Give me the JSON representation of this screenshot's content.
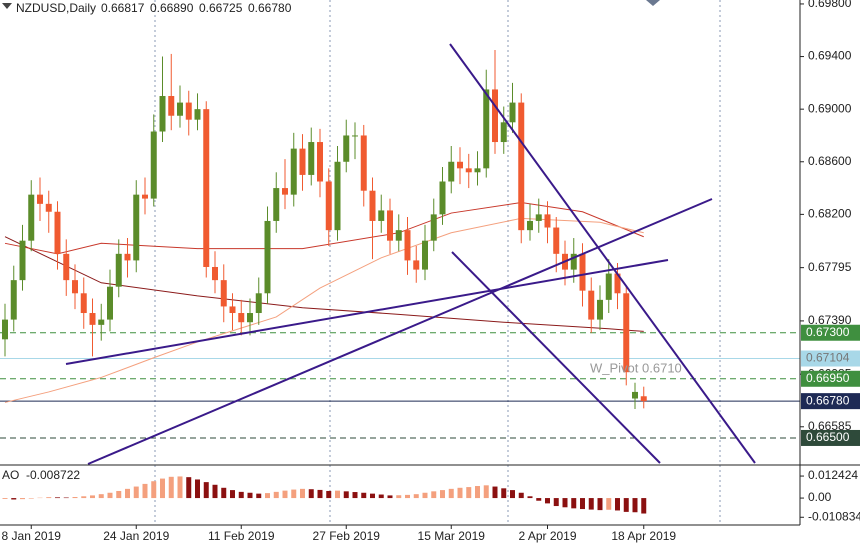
{
  "chart_data": {
    "type": "candlestick",
    "title": "NZDUSD,Daily",
    "last_bar_labels": [
      "0.66817",
      "0.66890",
      "0.66725",
      "0.66780"
    ],
    "categories": [
      null,
      null,
      null,
      "8 Jan 2019",
      null,
      null,
      null,
      null,
      null,
      null,
      null,
      null,
      null,
      null,
      null,
      "24 Jan 2019",
      null,
      null,
      null,
      null,
      null,
      null,
      null,
      null,
      null,
      null,
      null,
      "11 Feb 2019",
      null,
      null,
      null,
      null,
      null,
      null,
      null,
      null,
      null,
      null,
      null,
      "27 Feb 2019",
      null,
      null,
      null,
      null,
      null,
      null,
      null,
      null,
      null,
      null,
      null,
      "15 Mar 2019",
      null,
      null,
      null,
      null,
      null,
      null,
      null,
      null,
      null,
      null,
      "2 Apr 2019",
      null,
      null,
      null,
      null,
      null,
      null,
      null,
      null,
      null,
      null,
      "18 Apr 2019"
    ],
    "open": [
      0.6725,
      0.674,
      0.677,
      0.68,
      0.6835,
      0.6828,
      0.6822,
      0.679,
      0.677,
      0.676,
      0.6745,
      0.6736,
      0.674,
      0.6765,
      0.679,
      0.6785,
      0.6835,
      0.6832,
      0.6883,
      0.691,
      0.6895,
      0.6905,
      0.6892,
      0.69,
      0.678,
      0.677,
      0.675,
      0.6745,
      0.6738,
      0.6745,
      0.676,
      0.6815,
      0.684,
      0.6835,
      0.687,
      0.685,
      0.6875,
      0.6845,
      0.6808,
      0.686,
      0.688,
      0.688,
      0.6838,
      0.6815,
      0.6823,
      0.68,
      0.6808,
      0.6785,
      0.6778,
      0.68,
      0.682,
      0.6845,
      0.686,
      0.6855,
      0.6852,
      0.6855,
      0.6915,
      0.6875,
      0.689,
      0.6905,
      0.6808,
      0.6815,
      0.682,
      0.681,
      0.679,
      0.6778,
      0.679,
      0.6762,
      0.674,
      0.6755,
      0.6775,
      0.676,
      0.668,
      0.66817
    ],
    "high": [
      0.6752,
      0.6781,
      0.6812,
      0.6846,
      0.6848,
      0.6838,
      0.683,
      0.6801,
      0.6782,
      0.6772,
      0.6756,
      0.6752,
      0.6778,
      0.6801,
      0.6802,
      0.6846,
      0.6848,
      0.6896,
      0.694,
      0.6942,
      0.6918,
      0.6914,
      0.6912,
      0.6906,
      0.6792,
      0.6782,
      0.676,
      0.6755,
      0.6756,
      0.6772,
      0.6826,
      0.6852,
      0.6862,
      0.6882,
      0.6881,
      0.6886,
      0.6885,
      0.6855,
      0.6872,
      0.6892,
      0.689,
      0.6888,
      0.6848,
      0.6835,
      0.6832,
      0.682,
      0.6818,
      0.6796,
      0.6812,
      0.6832,
      0.6856,
      0.6872,
      0.6871,
      0.6866,
      0.6868,
      0.693,
      0.6945,
      0.6902,
      0.692,
      0.6912,
      0.6828,
      0.6832,
      0.683,
      0.6818,
      0.68,
      0.6802,
      0.6798,
      0.6772,
      0.6766,
      0.6786,
      0.6783,
      0.6765,
      0.6692,
      0.6689
    ],
    "low": [
      0.6712,
      0.6731,
      0.6762,
      0.6792,
      0.6815,
      0.6806,
      0.6778,
      0.6758,
      0.6748,
      0.6733,
      0.6712,
      0.6724,
      0.6731,
      0.6757,
      0.6772,
      0.6776,
      0.682,
      0.6826,
      0.6875,
      0.6884,
      0.6886,
      0.688,
      0.6884,
      0.6772,
      0.676,
      0.6738,
      0.6732,
      0.6728,
      0.6728,
      0.6736,
      0.6752,
      0.6806,
      0.6824,
      0.6826,
      0.6838,
      0.6842,
      0.6833,
      0.6796,
      0.68,
      0.6852,
      0.6862,
      0.6826,
      0.6786,
      0.6806,
      0.679,
      0.6792,
      0.6774,
      0.6768,
      0.677,
      0.6792,
      0.6812,
      0.6836,
      0.6843,
      0.684,
      0.6842,
      0.6848,
      0.6866,
      0.6866,
      0.6882,
      0.6798,
      0.68,
      0.6806,
      0.6798,
      0.6776,
      0.6766,
      0.6768,
      0.675,
      0.673,
      0.6732,
      0.6745,
      0.6748,
      0.669,
      0.6672,
      0.66725
    ],
    "close": [
      0.674,
      0.677,
      0.68,
      0.6835,
      0.6828,
      0.6822,
      0.679,
      0.677,
      0.676,
      0.6745,
      0.6736,
      0.674,
      0.6765,
      0.679,
      0.6785,
      0.6835,
      0.6832,
      0.6883,
      0.691,
      0.6895,
      0.6905,
      0.6892,
      0.69,
      0.678,
      0.677,
      0.675,
      0.6745,
      0.6738,
      0.6745,
      0.676,
      0.6815,
      0.684,
      0.6835,
      0.687,
      0.685,
      0.6875,
      0.6845,
      0.6808,
      0.686,
      0.688,
      0.688,
      0.6838,
      0.6815,
      0.6823,
      0.68,
      0.6808,
      0.6785,
      0.6778,
      0.68,
      0.682,
      0.6845,
      0.686,
      0.6855,
      0.6852,
      0.6855,
      0.6915,
      0.6875,
      0.689,
      0.6905,
      0.6808,
      0.6815,
      0.682,
      0.681,
      0.679,
      0.6778,
      0.679,
      0.6762,
      0.674,
      0.6755,
      0.6775,
      0.676,
      0.67,
      0.6685,
      0.6678
    ],
    "colors": {
      "up": "#5b8c2a",
      "down": "#f05a30"
    },
    "ylim": [
      0.66302,
      0.6983
    ],
    "yticks": [
      {
        "value": 0.698,
        "label": "0.69800"
      },
      {
        "value": 0.694,
        "label": "0.69400"
      },
      {
        "value": 0.69,
        "label": "0.69000"
      },
      {
        "value": 0.686,
        "label": "0.68600"
      },
      {
        "value": 0.682,
        "label": "0.68200"
      },
      {
        "value": 0.67795,
        "label": "0.67795"
      },
      {
        "value": 0.6739,
        "label": "0.67390"
      },
      {
        "value": 0.66985,
        "label": "0.66985"
      },
      {
        "value": 0.66585,
        "label": "0.66585"
      }
    ],
    "moving_averages": [
      {
        "color": "#8b1a1a",
        "x": [
          0,
          11,
          22,
          34,
          45,
          57,
          69,
          73
        ],
        "values": [
          0.6803,
          0.6768,
          0.6758,
          0.6749,
          0.6744,
          0.6738,
          0.6733,
          0.6731
        ]
      },
      {
        "color": "#c8382b",
        "x": [
          0,
          6,
          11,
          22,
          34,
          45,
          51,
          59,
          66,
          73
        ],
        "values": [
          0.6798,
          0.679,
          0.6798,
          0.6794,
          0.6794,
          0.6806,
          0.6821,
          0.6829,
          0.6822,
          0.6803
        ]
      },
      {
        "color": "#f4a07e",
        "x": [
          0,
          5,
          11,
          17,
          22,
          31,
          36,
          43,
          51,
          59,
          68,
          73
        ],
        "values": [
          0.6677,
          0.6685,
          0.6696,
          0.6711,
          0.6723,
          0.6742,
          0.6764,
          0.6787,
          0.6806,
          0.6817,
          0.6814,
          0.6806
        ]
      }
    ],
    "levels": [
      {
        "value": 0.673,
        "label": "0.67300",
        "color": "#3f8f3f",
        "dash": true,
        "tag_text": "#ffffff"
      },
      {
        "value": 0.67104,
        "label": "0.67104",
        "color": "#a8d8e8",
        "dash": false,
        "tag_text": "#777777"
      },
      {
        "value": 0.6695,
        "label": "0.66950",
        "color": "#3f8f3f",
        "dash": true,
        "tag_text": "#ffffff"
      },
      {
        "value": 0.6678,
        "label": "0.66780",
        "color": "#1e2a55",
        "dash": false,
        "tag_text": "#ffffff"
      },
      {
        "value": 0.665,
        "label": "0.66500",
        "color": "#2e4a3a",
        "dash": true,
        "tag_text": "#ffffff"
      }
    ],
    "annotation": "W_Pivot 0.6710",
    "ao": {
      "title": "AO",
      "values": [
        -0.0005,
        -0.0008,
        -0.0006,
        -0.0003,
        0.0002,
        0.0005,
        0.0004,
        0.0003,
        0.0006,
        0.001,
        0.0015,
        0.0022,
        0.003,
        0.004,
        0.0052,
        0.0065,
        0.008,
        0.0095,
        0.011,
        0.012,
        0.0122,
        0.0118,
        0.0105,
        0.009,
        0.0075,
        0.0058,
        0.0045,
        0.0035,
        0.003,
        0.0025,
        0.0028,
        0.0035,
        0.0042,
        0.0048,
        0.0052,
        0.005,
        0.0046,
        0.004,
        0.0042,
        0.0038,
        0.0034,
        0.003,
        0.0025,
        0.002,
        0.0015,
        0.0016,
        0.0018,
        0.0022,
        0.003,
        0.0038,
        0.0045,
        0.0052,
        0.0058,
        0.0062,
        0.0068,
        0.0072,
        0.0065,
        0.0055,
        0.0045,
        0.003,
        0.001,
        -0.0015,
        -0.003,
        -0.0045,
        -0.0052,
        -0.0058,
        -0.0062,
        -0.0065,
        -0.0068,
        -0.0066,
        -0.007,
        -0.0078,
        -0.008,
        -0.008722
      ],
      "colors": {
        "up": "#f4a07e",
        "down": "#8b1010"
      },
      "ylim": [
        -0.0152,
        0.0181
      ],
      "yticks": [
        0.012424,
        {
          "value": 0,
          "label": "0.00"
        },
        -0.010834
      ]
    }
  }
}
